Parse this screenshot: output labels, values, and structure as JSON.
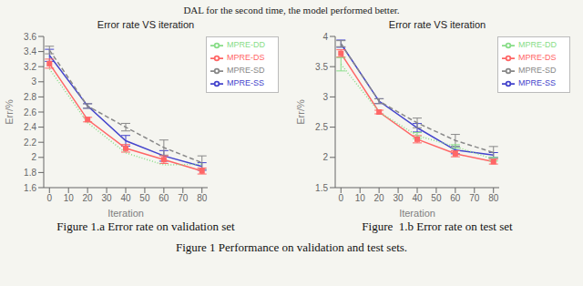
{
  "chart_data": [
    {
      "type": "line",
      "title": "Error rate VS iteration",
      "x_label": "Iteration",
      "y_label": "Err/%",
      "annotations": [
        "Figure 1.a Error rate on validation set"
      ],
      "x": [
        0,
        20,
        40,
        60,
        80
      ],
      "xlim": [
        -3,
        83
      ],
      "xticks": [
        0,
        10,
        20,
        30,
        40,
        50,
        60,
        70,
        80
      ],
      "ylim": [
        1.6,
        3.6
      ],
      "yticks": [
        1.6,
        1.8,
        2,
        2.2,
        2.4,
        2.6,
        2.8,
        3,
        3.2,
        3.4,
        3.6
      ],
      "grid": false,
      "legend": "upper right",
      "series": [
        {
          "name": "MPRE-SS",
          "color": "#4444CC",
          "line_style": "solid",
          "marker": "none",
          "values": [
            3.35,
            2.68,
            2.22,
            2.02,
            1.88
          ],
          "errors": [
            0.08,
            0.03,
            0.07,
            0.07,
            0.05
          ]
        },
        {
          "name": "MPRE-SD",
          "color": "#888888",
          "line_style": "dashed",
          "marker": "none",
          "values": [
            3.42,
            2.68,
            2.4,
            2.13,
            1.93
          ],
          "errors": [
            0.05,
            0.03,
            0.05,
            0.1,
            0.09
          ]
        },
        {
          "name": "MPRE-DS",
          "color": "#FF6666",
          "line_style": "solid",
          "marker": "square",
          "values": [
            3.24,
            2.5,
            2.12,
            1.97,
            1.82
          ],
          "errors": [
            0.06,
            0.03,
            0.05,
            0.05,
            0.04
          ]
        },
        {
          "name": "MPRE-DD",
          "color": "#88DD88",
          "line_style": "dotted",
          "marker": "none",
          "values": [
            3.17,
            2.46,
            2.06,
            1.9,
            1.91
          ],
          "errors": [
            0.0,
            0.0,
            0.0,
            0.0,
            0.0
          ]
        }
      ]
    },
    {
      "type": "line",
      "title": "Error rate VS iteration",
      "x_label": "Iteration",
      "y_label": "Err/%",
      "annotations": [
        "Figure  1.b Error rate on test set"
      ],
      "x": [
        0,
        20,
        40,
        60,
        80
      ],
      "xlim": [
        -3,
        83
      ],
      "xticks": [
        0,
        10,
        20,
        30,
        40,
        50,
        60,
        70,
        80
      ],
      "ylim": [
        1.5,
        4.0
      ],
      "yticks": [
        1.5,
        2,
        2.5,
        3,
        3.5,
        4
      ],
      "grid": false,
      "legend": "upper right",
      "series": [
        {
          "name": "MPRE-SS",
          "color": "#4444CC",
          "line_style": "solid",
          "marker": "none",
          "values": [
            3.88,
            2.93,
            2.49,
            2.12,
            2.04
          ],
          "errors": [
            0.06,
            0.04,
            0.07,
            0.06,
            0.04
          ]
        },
        {
          "name": "MPRE-SD",
          "color": "#888888",
          "line_style": "dashed",
          "marker": "none",
          "values": [
            3.88,
            2.93,
            2.57,
            2.28,
            2.08
          ],
          "errors": [
            0.05,
            0.04,
            0.08,
            0.1,
            0.1
          ]
        },
        {
          "name": "MPRE-DS",
          "color": "#FF6666",
          "line_style": "solid",
          "marker": "square",
          "values": [
            3.72,
            2.75,
            2.3,
            2.06,
            1.93
          ],
          "errors": [
            0.06,
            0.03,
            0.06,
            0.05,
            0.04
          ]
        },
        {
          "name": "MPRE-DD",
          "color": "#88DD88",
          "line_style": "dotted",
          "marker": "none",
          "values": [
            3.54,
            2.75,
            2.36,
            2.18,
            1.97
          ],
          "errors": [
            0.11,
            0.0,
            0.05,
            0.03,
            0.03
          ]
        }
      ]
    }
  ],
  "annotations": [
    "DAL for the second time, the model performed better.",
    "Figure 1 Performance on validation and test sets."
  ]
}
